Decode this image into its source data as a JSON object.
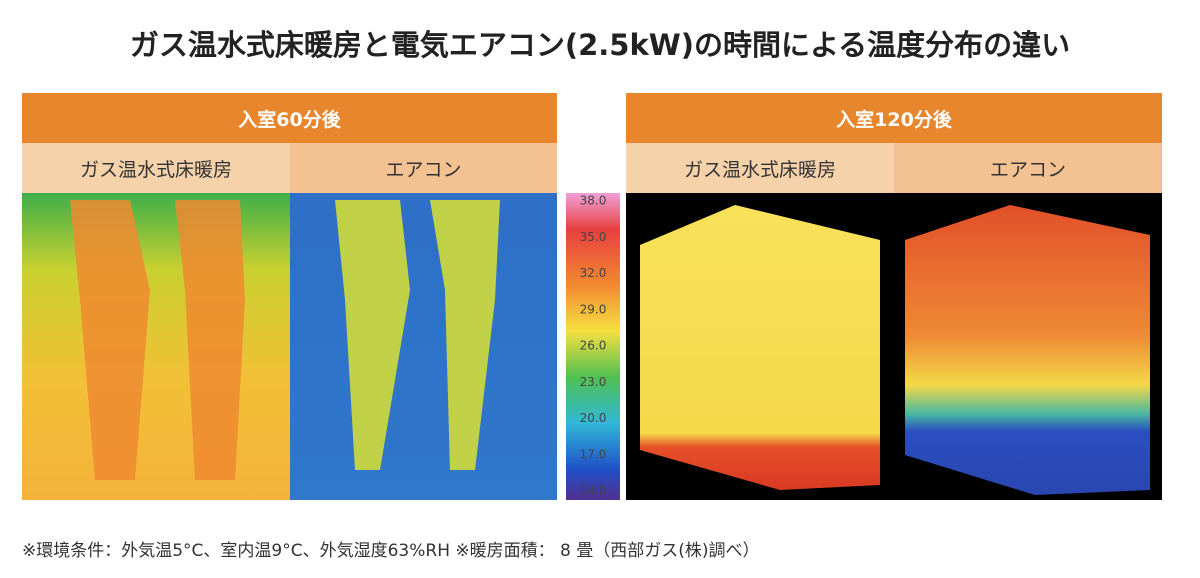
{
  "title": "ガス温水式床暖房と電気エアコン(2.5kW)の時間による温度分布の違い",
  "panels": [
    {
      "header": "入室60分後",
      "columns": [
        "ガス温水式床暖房",
        "エアコン"
      ]
    },
    {
      "header": "入室120分後",
      "columns": [
        "ガス温水式床暖房",
        "エアコン"
      ]
    }
  ],
  "scale": [
    "38.0",
    "35.0",
    "32.0",
    "29.0",
    "26.0",
    "23.0",
    "20.0",
    "17.0",
    "14.0"
  ],
  "note": "※環境条件：外気温5°C、室内温9°C、外気湿度63%RH ※暖房面積： 8 畳（西部ガス(株)調べ）"
}
